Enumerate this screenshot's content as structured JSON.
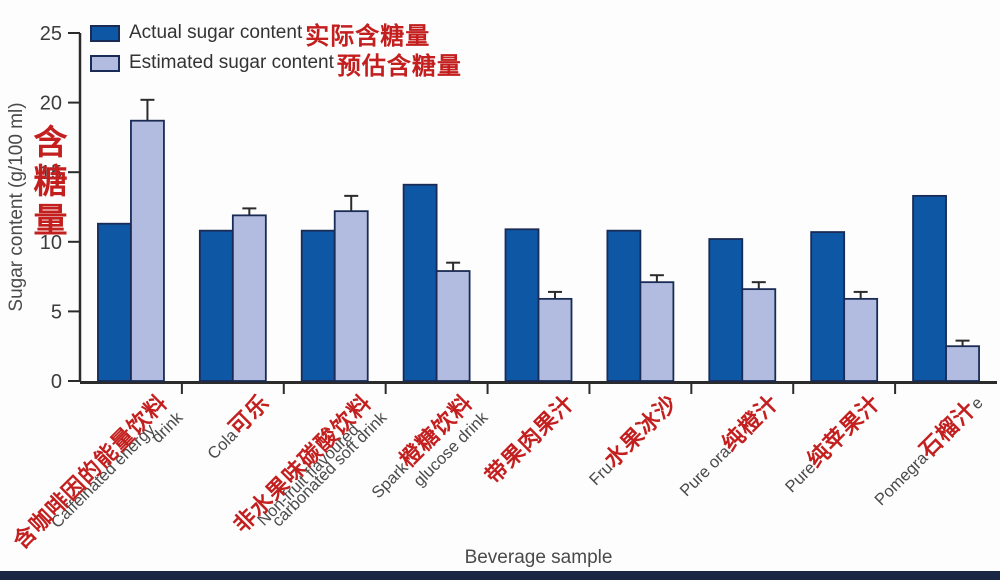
{
  "accent_colors": {
    "actual_bar": "#0E57A5",
    "estimated_bar": "#B2BCE0",
    "bar_border": "#1A2B55",
    "annotation_red": "#C41F1F",
    "axis": "#2B2B2B",
    "footer_bar": "#1A2745"
  },
  "legend": [
    {
      "label": "Actual sugar content",
      "zh": "实际含糖量",
      "swatch": "actual"
    },
    {
      "label": "Estimated sugar content",
      "zh": "预估含糖量",
      "swatch": "estimated"
    }
  ],
  "y_axis": {
    "label": "Sugar content (g/100 ml)",
    "zh": "含糖量",
    "ticks": [
      0,
      5,
      10,
      15,
      20,
      25
    ]
  },
  "x_axis": {
    "label": "Beverage sample"
  },
  "chart_data": {
    "type": "bar",
    "title": "",
    "xlabel": "Beverage sample",
    "ylabel": "Sugar content (g/100 ml)",
    "ylim": [
      0,
      25
    ],
    "yticks": [
      0,
      5,
      10,
      15,
      20,
      25
    ],
    "grid": false,
    "legend_position": "top-left",
    "categories": [
      "Caffeinated energy drink 含咖啡因的能量饮料",
      "Cola 可乐",
      "Non-fruit flavoured carbonated soft drink 非水果味碳酸饮料",
      "Sparkling glucose drink 橙糖饮料",
      "带果肉果汁",
      "Fruit smoothie 水果冰沙",
      "Pure orange juice 纯橙汁",
      "Pure apple juice 纯苹果汁",
      "Pomegranate juice 石榴汁"
    ],
    "labels": [
      {
        "under": "Caffeinated energy",
        "red": "含咖啡因的能量饮料",
        "line2": "drink"
      },
      {
        "pre": "Cola",
        "red": "可乐"
      },
      {
        "under": "Non-fruit flavoured",
        "red": "非水果味碳酸饮料",
        "line2": "carbonated soft drink"
      },
      {
        "pre": "Spark",
        "red": "橙糖饮料",
        "line2": "glucose drink"
      },
      {
        "red": "带果肉果汁"
      },
      {
        "pre": "Fru",
        "red": "水果冰沙"
      },
      {
        "pre": "Pure ora",
        "red": "纯橙汁"
      },
      {
        "pre": "Pure",
        "red": "纯苹果汁"
      },
      {
        "pre": "Pomegra",
        "red": "石榴汁",
        "post": "e"
      }
    ],
    "series": [
      {
        "name": "Actual sugar content",
        "values": [
          11.3,
          10.8,
          10.8,
          14.1,
          10.9,
          10.8,
          10.2,
          10.7,
          13.3
        ]
      },
      {
        "name": "Estimated sugar content",
        "values": [
          18.7,
          11.9,
          12.2,
          7.9,
          5.9,
          7.1,
          6.6,
          5.9,
          2.5
        ],
        "upper_errors": [
          1.5,
          0.5,
          1.1,
          0.6,
          0.5,
          0.5,
          0.5,
          0.5,
          0.4
        ]
      }
    ]
  }
}
